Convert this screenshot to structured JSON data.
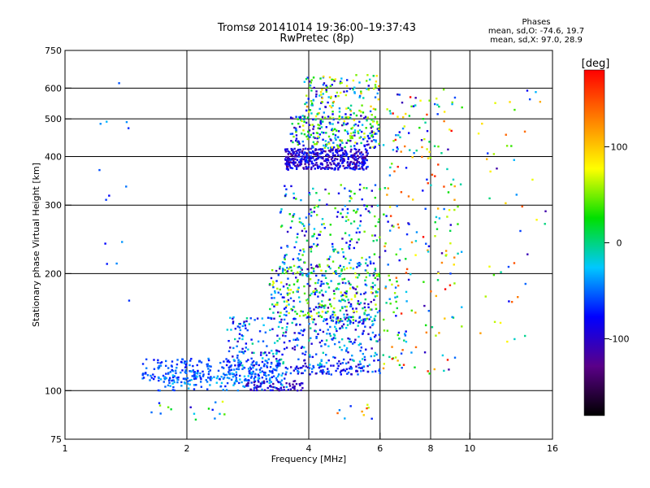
{
  "header": {
    "title": "Tromsø 20141014 19:36:00–19:37:43",
    "subtitle": "RwPretec (8p)",
    "stats_title": "Phases",
    "stats_o": "mean, sd,O: -74.6, 19.7",
    "stats_x": "mean, sd,X:  97.0, 28.9"
  },
  "chart_data": {
    "type": "scatter",
    "xlabel": "Frequency [MHz]",
    "ylabel": "Stationary phase Virtual Height [km]",
    "x_scale": "log",
    "y_scale": "log",
    "xlim": [
      1,
      16
    ],
    "ylim": [
      75,
      750
    ],
    "x_ticks": [
      1,
      2,
      4,
      6,
      8,
      10,
      16
    ],
    "x_tick_labels": [
      "1",
      "2",
      "4",
      "6",
      "8",
      "10",
      "16"
    ],
    "y_ticks": [
      75,
      100,
      200,
      300,
      400,
      500,
      600,
      750
    ],
    "y_tick_labels": [
      "75",
      "100",
      "200",
      "300",
      "400",
      "500",
      "600",
      "750"
    ],
    "grid": true,
    "colorbar": {
      "label": "[deg]",
      "range": [
        -180,
        180
      ],
      "ticks": [
        100,
        0,
        -100
      ],
      "tick_labels": [
        "100",
        "0",
        "-100"
      ],
      "colors": [
        "#000000",
        "#5a0088",
        "#0000ff",
        "#00c8ff",
        "#00e000",
        "#ffff00",
        "#ff8000",
        "#ff0000"
      ]
    },
    "series": [
      {
        "mode": "O",
        "mean_phase": -74.6,
        "sd_phase": 19.7
      },
      {
        "mode": "X",
        "mean_phase": 97.0,
        "sd_phase": 28.9
      }
    ],
    "point_groups": [
      {
        "f": [
          1.55,
          3.4
        ],
        "h": [
          106,
          121
        ],
        "phase": [
          -80,
          -40
        ],
        "n": 230
      },
      {
        "f": [
          1.7,
          3.6
        ],
        "h": [
          100,
          112
        ],
        "phase": [
          -70,
          -20
        ],
        "n": 150
      },
      {
        "f": [
          2.8,
          3.9
        ],
        "h": [
          100,
          106
        ],
        "phase": [
          -120,
          -90
        ],
        "n": 60
      },
      {
        "f": [
          3.5,
          6.0
        ],
        "h": [
          110,
          116
        ],
        "phase": [
          -110,
          -40
        ],
        "n": 90
      },
      {
        "f": [
          2.5,
          6.0
        ],
        "h": [
          116,
          155
        ],
        "phase": [
          -110,
          0
        ],
        "n": 320
      },
      {
        "f": [
          3.2,
          6.0
        ],
        "h": [
          150,
          210
        ],
        "phase": [
          -120,
          80
        ],
        "n": 380
      },
      {
        "f": [
          3.4,
          6.0
        ],
        "h": [
          210,
          340
        ],
        "phase": [
          -110,
          60
        ],
        "n": 200
      },
      {
        "f": [
          3.5,
          5.6
        ],
        "h": [
          370,
          420
        ],
        "phase": [
          -130,
          -60
        ],
        "n": 420
      },
      {
        "f": [
          3.6,
          6.0
        ],
        "h": [
          420,
          510
        ],
        "phase": [
          -120,
          80
        ],
        "n": 260
      },
      {
        "f": [
          3.9,
          6.0
        ],
        "h": [
          510,
          650
        ],
        "phase": [
          -110,
          120
        ],
        "n": 140
      },
      {
        "f": [
          6.1,
          7.4
        ],
        "h": [
          110,
          600
        ],
        "phase": [
          -120,
          180
        ],
        "n": 130
      },
      {
        "f": [
          7.5,
          9.6
        ],
        "h": [
          110,
          600
        ],
        "phase": [
          -120,
          180
        ],
        "n": 110
      },
      {
        "f": [
          10.5,
          15.5
        ],
        "h": [
          130,
          600
        ],
        "phase": [
          -120,
          150
        ],
        "n": 45
      },
      {
        "f": [
          1.2,
          1.45
        ],
        "h": [
          170,
          630
        ],
        "phase": [
          -80,
          -30
        ],
        "n": 14
      },
      {
        "f": [
          1.55,
          2.5
        ],
        "h": [
          84,
          95
        ],
        "phase": [
          -110,
          80
        ],
        "n": 16
      },
      {
        "f": [
          4.4,
          5.8
        ],
        "h": [
          82,
          92
        ],
        "phase": [
          -80,
          160
        ],
        "n": 10
      }
    ]
  }
}
